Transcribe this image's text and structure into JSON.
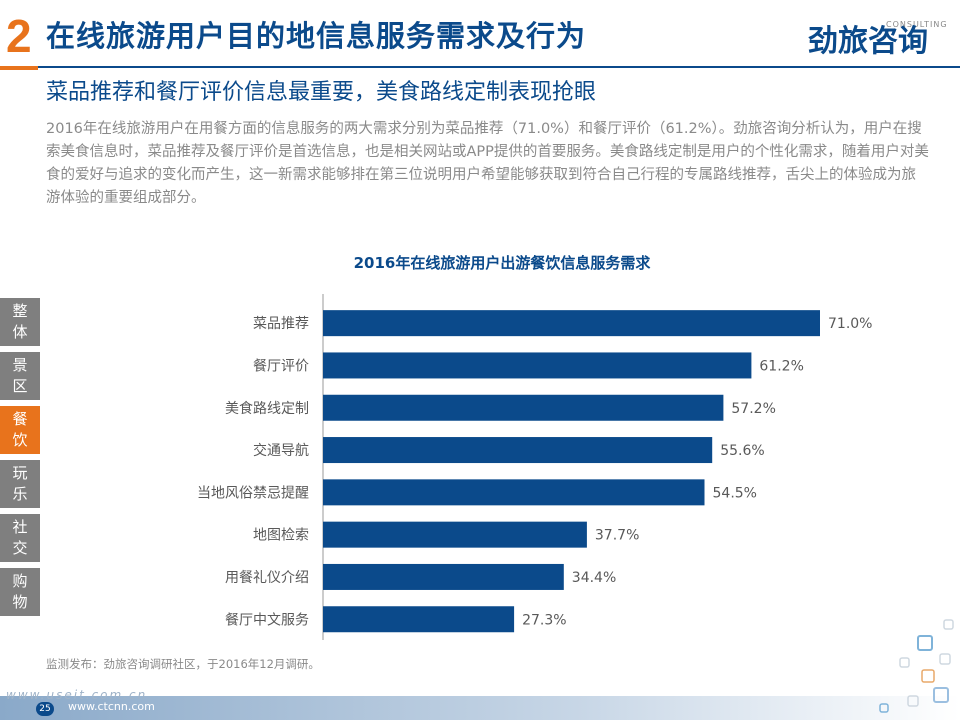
{
  "header": {
    "number": "2",
    "title": "在线旅游用户目的地信息服务需求及行为",
    "logo_text": "劲旅咨询",
    "logo_sub": "CONSULTING"
  },
  "subtitle": "菜品推荐和餐厅评价信息最重要，美食路线定制表现抢眼",
  "body_text": "2016年在线旅游用户在用餐方面的信息服务的两大需求分别为菜品推荐（71.0%）和餐厅评价（61.2%）。劲旅咨询分析认为，用户在搜索美食信息时，菜品推荐及餐厅评价是首选信息，也是相关网站或APP提供的首要服务。美食路线定制是用户的个性化需求，随着用户对美食的爱好与追求的变化而产生，这一新需求能够排在第三位说明用户希望能够获取到符合自己行程的专属路线推荐，舌尖上的体验成为旅游体验的重要组成部分。",
  "side_tabs": [
    {
      "label": "整体",
      "active": false
    },
    {
      "label": "景区",
      "active": false
    },
    {
      "label": "餐饮",
      "active": true
    },
    {
      "label": "玩乐",
      "active": false
    },
    {
      "label": "社交",
      "active": false
    },
    {
      "label": "购物",
      "active": false
    }
  ],
  "colors": {
    "bar": "#0b4a8b",
    "accent": "#e8731c",
    "tab_inactive": "#7f7f7f"
  },
  "chart_data": {
    "type": "bar",
    "orientation": "horizontal",
    "title": "2016年在线旅游用户出游餐饮信息服务需求",
    "categories": [
      "菜品推荐",
      "餐厅评价",
      "美食路线定制",
      "交通导航",
      "当地风俗禁忌提醒",
      "地图检索",
      "用餐礼仪介绍",
      "餐厅中文服务"
    ],
    "values": [
      71.0,
      61.2,
      57.2,
      55.6,
      54.5,
      37.7,
      34.4,
      27.3
    ],
    "value_labels": [
      "71.0%",
      "61.2%",
      "57.2%",
      "55.6%",
      "54.5%",
      "37.7%",
      "34.4%",
      "27.3%"
    ],
    "xlim": [
      0,
      80
    ],
    "grid": false
  },
  "source": "监测发布：劲旅咨询调研社区，于2016年12月调研。",
  "footer": {
    "page": "25",
    "url": "www.ctcnn.com",
    "watermark": "www.useit.com.cn"
  }
}
